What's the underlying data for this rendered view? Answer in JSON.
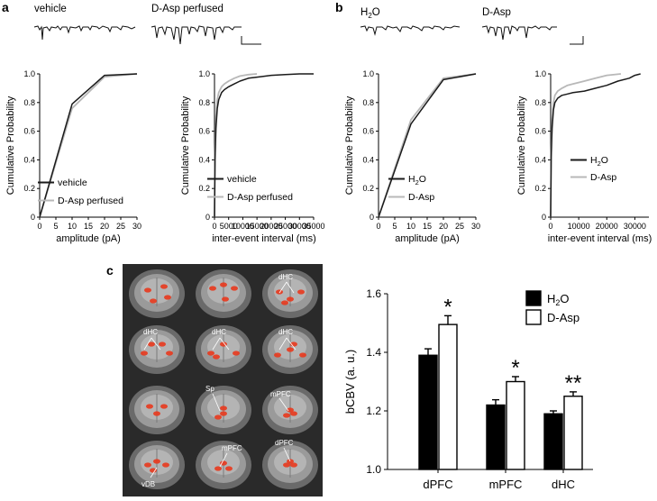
{
  "panel_labels": {
    "a": "a",
    "b": "b",
    "c": "c"
  },
  "conditions": {
    "vehicle": "vehicle",
    "dasp_perfused": "D-Asp perfused",
    "h2o_base": "H",
    "h2o_sub": "2",
    "h2o_end": "O",
    "dasp": "D-Asp"
  },
  "mri_labels": [
    "dHC",
    "dHC",
    "dHC",
    "dHC",
    "Sp",
    "mPFC",
    "mPFC",
    "dPFC",
    "vDB"
  ],
  "colors": {
    "black_series": "#1a1a1a",
    "gray_series": "#b8b8b8",
    "mri_bg": "#2a2a2a",
    "blob": "#e8391d"
  },
  "chart_data": [
    {
      "type": "line",
      "panel": "a-left",
      "ylabel": "Cumulative Probability",
      "xlabel": "amplitude (pA)",
      "xlim": [
        0,
        30
      ],
      "ylim": [
        0,
        1.0
      ],
      "xticks": [
        "0",
        "5",
        "10",
        "15",
        "20",
        "25",
        "30"
      ],
      "yticks": [
        "0",
        "0.2",
        "0.4",
        "0.6",
        "0.8",
        "1.0"
      ],
      "legend": [
        "vehicle",
        "D-Asp perfused"
      ],
      "series": [
        {
          "name": "vehicle",
          "color": "#1a1a1a",
          "x": [
            0,
            10,
            20,
            30
          ],
          "y": [
            0,
            0.79,
            0.99,
            1.0
          ]
        },
        {
          "name": "D-Asp perfused",
          "color": "#b8b8b8",
          "x": [
            0,
            10,
            20,
            30
          ],
          "y": [
            0,
            0.76,
            0.98,
            1.0
          ]
        }
      ]
    },
    {
      "type": "line",
      "panel": "a-right",
      "ylabel": "Cumulative Probability",
      "xlabel": "inter-event interval (ms)",
      "xlim": [
        0,
        35000
      ],
      "ylim": [
        0,
        1.0
      ],
      "xticks": [
        "0",
        "5000",
        "10000",
        "15000",
        "20000",
        "25000",
        "30000",
        "35000"
      ],
      "yticks": [
        "0",
        "0.2",
        "0.4",
        "0.6",
        "0.8",
        "1.0"
      ],
      "legend": [
        "vehicle",
        "D-Asp perfused"
      ],
      "series": [
        {
          "name": "vehicle",
          "color": "#1a1a1a",
          "x": [
            0,
            200,
            500,
            1000,
            1500,
            2500,
            3500,
            5000,
            7000,
            9000,
            12000,
            16000,
            20000,
            25000,
            30000,
            35000
          ],
          "y": [
            0,
            0.4,
            0.62,
            0.76,
            0.82,
            0.87,
            0.89,
            0.91,
            0.93,
            0.95,
            0.97,
            0.98,
            0.99,
            0.995,
            1.0,
            1.0
          ]
        },
        {
          "name": "D-Asp perfused",
          "color": "#b8b8b8",
          "x": [
            0,
            200,
            500,
            1000,
            1500,
            2500,
            3500,
            5000,
            7000,
            9000,
            12000,
            15000
          ],
          "y": [
            0,
            0.45,
            0.7,
            0.82,
            0.87,
            0.91,
            0.93,
            0.95,
            0.97,
            0.985,
            0.995,
            1.0
          ]
        }
      ]
    },
    {
      "type": "line",
      "panel": "b-left",
      "ylabel": "Cumulative Probability",
      "xlabel": "amplitude (pA)",
      "xlim": [
        0,
        30
      ],
      "ylim": [
        0,
        1.0
      ],
      "xticks": [
        "0",
        "5",
        "10",
        "15",
        "20",
        "25",
        "30"
      ],
      "yticks": [
        "0",
        "0.2",
        "0.4",
        "0.6",
        "0.8",
        "1.0"
      ],
      "legend": [
        "H2O",
        "D-Asp"
      ],
      "series": [
        {
          "name": "H2O",
          "color": "#1a1a1a",
          "x": [
            0,
            10,
            20,
            30
          ],
          "y": [
            0,
            0.65,
            0.96,
            1.0
          ]
        },
        {
          "name": "D-Asp",
          "color": "#b8b8b8",
          "x": [
            0,
            10,
            20,
            30
          ],
          "y": [
            0,
            0.68,
            0.97,
            1.0
          ]
        }
      ]
    },
    {
      "type": "line",
      "panel": "b-right",
      "ylabel": "Cumulative Probability",
      "xlabel": "inter-event interval (ms)",
      "xlim": [
        0,
        35000
      ],
      "ylim": [
        0,
        1.0
      ],
      "xticks": [
        "0",
        "10000",
        "20000",
        "30000"
      ],
      "yticks": [
        "0",
        "0.2",
        "0.4",
        "0.6",
        "0.8",
        "1.0"
      ],
      "legend": [
        "H2O",
        "D-Asp"
      ],
      "series": [
        {
          "name": "H2O",
          "color": "#1a1a1a",
          "x": [
            0,
            200,
            500,
            1000,
            1500,
            2500,
            4000,
            6000,
            8000,
            12000,
            16000,
            20000,
            24000,
            28000,
            30000,
            32000
          ],
          "y": [
            0,
            0.42,
            0.62,
            0.75,
            0.8,
            0.83,
            0.85,
            0.86,
            0.87,
            0.88,
            0.9,
            0.92,
            0.95,
            0.97,
            0.99,
            1.0
          ]
        },
        {
          "name": "D-Asp",
          "color": "#b8b8b8",
          "x": [
            0,
            200,
            500,
            1000,
            1500,
            2500,
            4000,
            6000,
            8000,
            12000,
            16000,
            20000,
            25000
          ],
          "y": [
            0,
            0.45,
            0.68,
            0.8,
            0.85,
            0.88,
            0.9,
            0.92,
            0.93,
            0.95,
            0.97,
            0.99,
            1.0
          ]
        }
      ]
    },
    {
      "type": "bar",
      "panel": "c",
      "ylabel": "bCBV (a. u.)",
      "categories": [
        "dPFC",
        "mPFC",
        "dHC"
      ],
      "ylim": [
        1.0,
        1.6
      ],
      "yticks": [
        "1.0",
        "1.2",
        "1.4",
        "1.6"
      ],
      "legend": [
        "H2O",
        "D-Asp"
      ],
      "series": [
        {
          "name": "H2O",
          "color": "#000000",
          "values": [
            1.39,
            1.22,
            1.19
          ],
          "errors": [
            0.022,
            0.018,
            0.01
          ]
        },
        {
          "name": "D-Asp",
          "color": "#ffffff",
          "values": [
            1.495,
            1.3,
            1.25
          ],
          "errors": [
            0.03,
            0.017,
            0.015
          ]
        }
      ],
      "significance": [
        "*",
        "*",
        "**"
      ]
    }
  ]
}
